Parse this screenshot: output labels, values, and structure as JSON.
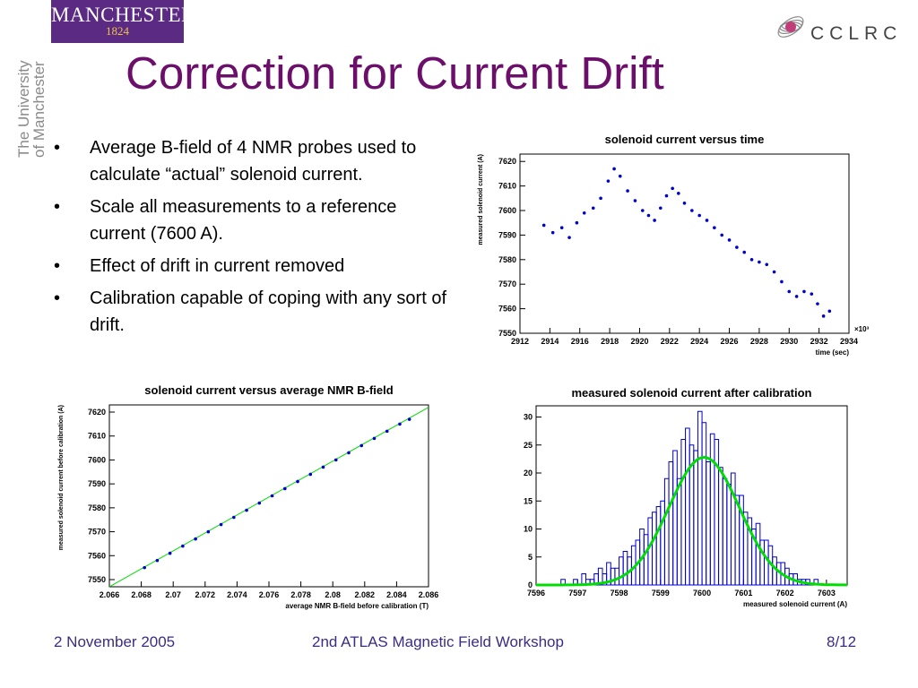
{
  "header": {
    "manchester_wordmark": "MANCHESTER",
    "manchester_year": "1824",
    "university_vertical_line1": "The University",
    "university_vertical_line2": "of Manchester",
    "cclrc_name": "CCLRC"
  },
  "slide": {
    "title": "Correction for Current Drift",
    "bullets": [
      "Average B-field of 4 NMR probes used to calculate “actual” solenoid current.",
      "Scale all measurements to a reference current (7600 A).",
      "Effect of drift in current removed",
      "Calibration capable of coping with any sort of drift."
    ],
    "bullet_marker": "•"
  },
  "footer": {
    "date": "2 November 2005",
    "event": "2nd ATLAS Magnetic Field Workshop",
    "page": "8/12"
  },
  "colors": {
    "title": "#6b0f6b",
    "footer_text": "#3a2d84",
    "manchester_purple": "#5b2a83",
    "manchester_gold": "#f0c24a",
    "data_points": "#0000cc",
    "fit_line": "#00dd00"
  },
  "chart_data": [
    {
      "type": "scatter",
      "title": "solenoid current versus time",
      "xlabel": "time (sec)",
      "ylabel": "measured solenoid current (A)",
      "x_multiplier": "×10³",
      "xlim": [
        2912,
        2934
      ],
      "ylim": [
        7550,
        7623
      ],
      "x_ticks": [
        2912,
        2914,
        2916,
        2918,
        2920,
        2922,
        2924,
        2926,
        2928,
        2930,
        2932,
        2934
      ],
      "y_ticks": [
        7550,
        7560,
        7570,
        7580,
        7590,
        7600,
        7610,
        7620
      ],
      "series": [
        {
          "x": [
            2913.6,
            2914.2,
            2914.8,
            2915.3,
            2915.8,
            2916.3,
            2916.9,
            2917.4,
            2917.9,
            2918.3,
            2918.7,
            2919.2,
            2919.7,
            2920.2,
            2920.6,
            2921.0,
            2921.4,
            2921.8,
            2922.2,
            2922.6,
            2923.0,
            2923.5,
            2924.0,
            2924.5,
            2925.0,
            2925.5,
            2926.0,
            2926.5,
            2927.0,
            2927.5,
            2928.0,
            2928.5,
            2929.0,
            2929.5,
            2930.0,
            2930.5,
            2931.0,
            2931.5,
            2931.9,
            2932.3,
            2932.7
          ],
          "y": [
            7594,
            7591,
            7593,
            7589,
            7595,
            7599,
            7601,
            7605,
            7612,
            7617,
            7614,
            7608,
            7604,
            7600,
            7598,
            7596,
            7601,
            7606,
            7609,
            7607,
            7603,
            7600,
            7598,
            7596,
            7593,
            7590,
            7588,
            7585,
            7583,
            7580,
            7579,
            7578,
            7575,
            7571,
            7567,
            7565,
            7567,
            7566,
            7562,
            7557,
            7559
          ]
        }
      ]
    },
    {
      "type": "scatter",
      "title": "solenoid current versus average NMR B-field",
      "xlabel": "average NMR B-field before calibration (T)",
      "ylabel": "measured solenoid current before calibration (A)",
      "xlim": [
        2.066,
        2.086
      ],
      "ylim": [
        7547,
        7623
      ],
      "x_ticks": [
        2.066,
        2.068,
        2.07,
        2.072,
        2.074,
        2.076,
        2.078,
        2.08,
        2.082,
        2.084,
        2.086
      ],
      "y_ticks": [
        7550,
        7560,
        7570,
        7580,
        7590,
        7600,
        7610,
        7620
      ],
      "fit_line": {
        "x": [
          2.066,
          2.086
        ],
        "y": [
          7547,
          7622
        ]
      },
      "series": [
        {
          "x": [
            2.0682,
            2.069,
            2.0698,
            2.0706,
            2.0714,
            2.0722,
            2.073,
            2.0738,
            2.0746,
            2.0754,
            2.0762,
            2.077,
            2.0778,
            2.0786,
            2.0794,
            2.0802,
            2.081,
            2.0818,
            2.0826,
            2.0834,
            2.0842,
            2.0848
          ],
          "y": [
            7555,
            7558,
            7561,
            7564,
            7567,
            7570,
            7573,
            7576,
            7579,
            7582,
            7585,
            7588,
            7591,
            7594,
            7597,
            7600,
            7603,
            7606,
            7609,
            7612,
            7615,
            7617
          ]
        }
      ]
    },
    {
      "type": "bar",
      "title": "measured solenoid current after calibration",
      "xlabel": "measured solenoid current (A)",
      "ylabel": "",
      "xlim": [
        7596,
        7603.5
      ],
      "ylim": [
        0,
        32
      ],
      "x_ticks": [
        7596,
        7597,
        7598,
        7599,
        7600,
        7601,
        7602,
        7603
      ],
      "y_ticks": [
        0,
        5,
        10,
        15,
        20,
        25,
        30
      ],
      "histogram": {
        "bin_start": 7596.5,
        "bin_width": 0.1,
        "counts": [
          0,
          1,
          0,
          0,
          1,
          0,
          2,
          1,
          1,
          2,
          3,
          2,
          4,
          3,
          3,
          5,
          6,
          5,
          7,
          8,
          10,
          9,
          12,
          13,
          14,
          15,
          19,
          22,
          24,
          19,
          26,
          28,
          25,
          24,
          31,
          29,
          22,
          27,
          26,
          21,
          19,
          18,
          20,
          16,
          16,
          13,
          12,
          10,
          11,
          8,
          8,
          7,
          5,
          4,
          4,
          3,
          2,
          2,
          1,
          1,
          1,
          0,
          1,
          0,
          0
        ]
      },
      "gaussian_fit": {
        "mean": 7600.05,
        "sigma": 0.85,
        "amplitude": 22.8
      }
    }
  ]
}
